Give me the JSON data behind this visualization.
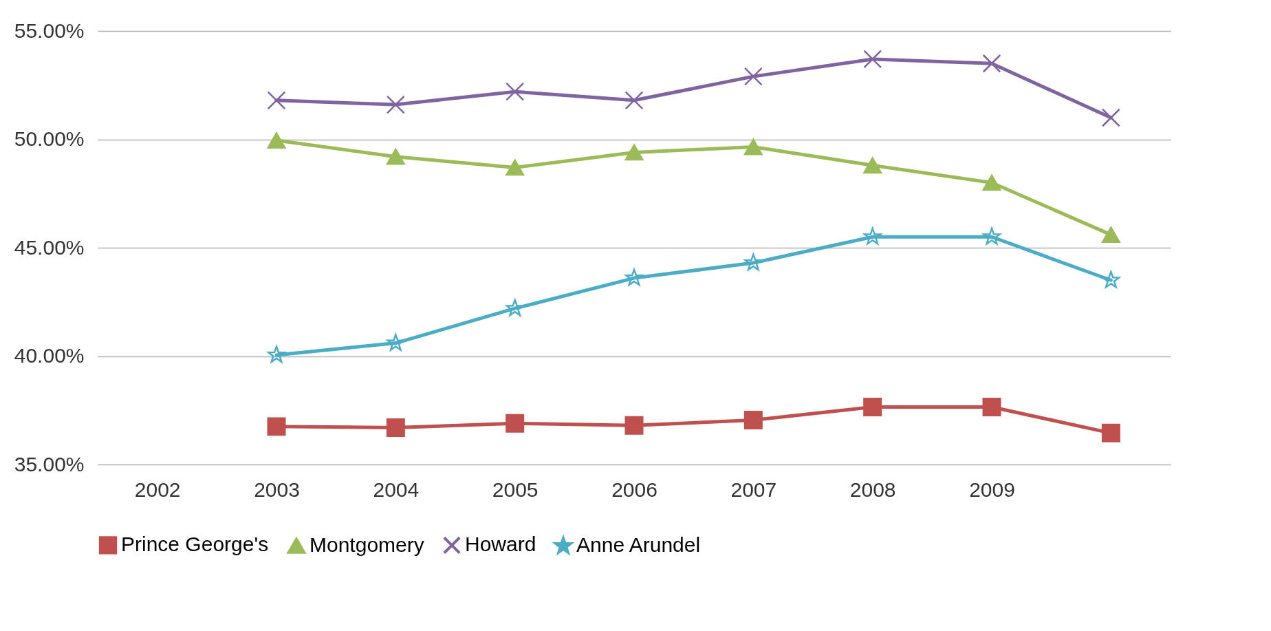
{
  "chart_data": {
    "type": "line",
    "categories": [
      "2002",
      "2003",
      "2004",
      "2005",
      "2006",
      "2007",
      "2008",
      "2009",
      null
    ],
    "series": [
      {
        "name": "Prince George's",
        "color": "#c0504d",
        "marker": "square",
        "values": [
          null,
          36.75,
          36.7,
          36.9,
          36.8,
          37.05,
          37.65,
          37.65,
          36.45
        ]
      },
      {
        "name": "Montgomery",
        "color": "#9bbb59",
        "marker": "triangle",
        "values": [
          null,
          49.95,
          49.2,
          48.7,
          49.4,
          49.65,
          48.8,
          48.0,
          45.6
        ]
      },
      {
        "name": "Howard",
        "color": "#8064a2",
        "marker": "cross",
        "values": [
          null,
          51.8,
          51.6,
          52.2,
          51.8,
          52.9,
          53.7,
          53.5,
          51.0
        ]
      },
      {
        "name": "Anne Arundel",
        "color": "#4bacc6",
        "marker": "star",
        "values": [
          null,
          40.05,
          40.6,
          42.2,
          43.6,
          44.3,
          45.5,
          45.5,
          43.5
        ]
      }
    ],
    "ylim": [
      35,
      55
    ],
    "yticks": [
      {
        "value": 35,
        "label": "35.00%"
      },
      {
        "value": 40,
        "label": "40.00%"
      },
      {
        "value": 45,
        "label": "45.00%"
      },
      {
        "value": 50,
        "label": "50.00%"
      },
      {
        "value": 55,
        "label": "55.00%"
      }
    ],
    "grid": "y",
    "legend": "bottom",
    "line_style": "solid"
  }
}
